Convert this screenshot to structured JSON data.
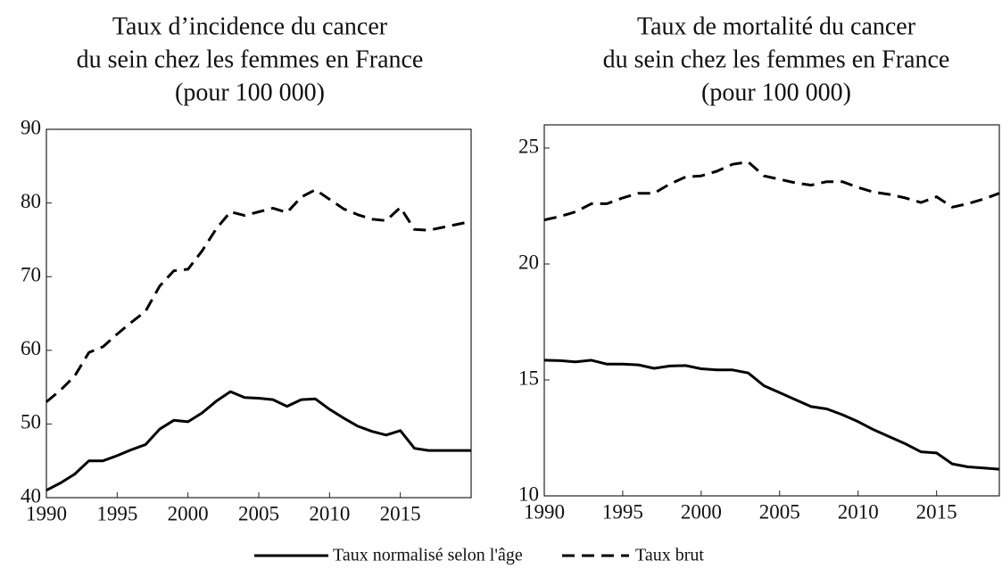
{
  "chart_data": [
    {
      "type": "line",
      "title": [
        "Taux d’incidence du cancer",
        "du sein chez les femmes en France",
        "(pour 100 000)"
      ],
      "x": [
        1990,
        1991,
        1992,
        1993,
        1994,
        1995,
        1996,
        1997,
        1998,
        1999,
        2000,
        2001,
        2002,
        2003,
        2004,
        2005,
        2006,
        2007,
        2008,
        2009,
        2010,
        2011,
        2012,
        2013,
        2014,
        2015,
        2016,
        2017,
        2018,
        2019,
        2020
      ],
      "xlim": [
        1990,
        2020
      ],
      "xticks": [
        1990,
        1995,
        2000,
        2005,
        2010,
        2015
      ],
      "ylim": [
        40,
        90
      ],
      "yticks": [
        40,
        50,
        60,
        70,
        80,
        90
      ],
      "series": [
        {
          "name": "Taux normalisé selon l'âge",
          "color": "#000000",
          "dash": false,
          "values": [
            41,
            42,
            43.2,
            45,
            45,
            45.7,
            46.5,
            47.2,
            49.3,
            50.5,
            50.3,
            51.5,
            53.1,
            54.4,
            53.6,
            53.5,
            53.3,
            52.4,
            53.3,
            53.4,
            52,
            50.8,
            49.7,
            49,
            48.5,
            49.1,
            46.7,
            46.4,
            46.4,
            46.4,
            46.4
          ]
        },
        {
          "name": "Taux brut",
          "color": "#000000",
          "dash": true,
          "values": [
            53,
            54.6,
            56.5,
            59.7,
            60.5,
            62.2,
            63.8,
            65.3,
            68.7,
            70.8,
            71,
            73.5,
            76.5,
            78.8,
            78.3,
            78.8,
            79.3,
            78.7,
            80.8,
            81.8,
            80.5,
            79.2,
            78.4,
            77.8,
            77.6,
            79.4,
            76.4,
            76.3,
            76.7,
            77.1,
            77.5
          ]
        }
      ]
    },
    {
      "type": "line",
      "title": [
        "Taux de mortalité du cancer",
        "du sein chez les femmes en France",
        "(pour 100 000)"
      ],
      "x": [
        1990,
        1991,
        1992,
        1993,
        1994,
        1995,
        1996,
        1997,
        1998,
        1999,
        2000,
        2001,
        2002,
        2003,
        2004,
        2005,
        2006,
        2007,
        2008,
        2009,
        2010,
        2011,
        2012,
        2013,
        2014,
        2015,
        2016,
        2017,
        2018,
        2019
      ],
      "xlim": [
        1990,
        2019
      ],
      "xticks": [
        1990,
        1995,
        2000,
        2005,
        2010,
        2015
      ],
      "ylim": [
        10,
        26
      ],
      "yticks": [
        10,
        15,
        20,
        25
      ],
      "series": [
        {
          "name": "Taux normalisé selon l'âge",
          "color": "#000000",
          "dash": false,
          "values": [
            15.85,
            15.83,
            15.78,
            15.85,
            15.68,
            15.68,
            15.65,
            15.5,
            15.6,
            15.62,
            15.48,
            15.43,
            15.43,
            15.3,
            14.75,
            14.45,
            14.15,
            13.85,
            13.75,
            13.5,
            13.2,
            12.85,
            12.55,
            12.25,
            11.9,
            11.85,
            11.38,
            11.25,
            11.2,
            11.15
          ]
        },
        {
          "name": "Taux brut",
          "color": "#000000",
          "dash": true,
          "values": [
            21.9,
            22.05,
            22.25,
            22.6,
            22.6,
            22.85,
            23.05,
            23.05,
            23.45,
            23.75,
            23.8,
            24.0,
            24.3,
            24.4,
            23.8,
            23.65,
            23.5,
            23.4,
            23.55,
            23.55,
            23.3,
            23.1,
            23.0,
            22.85,
            22.65,
            22.9,
            22.45,
            22.6,
            22.8,
            23.05
          ]
        }
      ]
    }
  ]
}
